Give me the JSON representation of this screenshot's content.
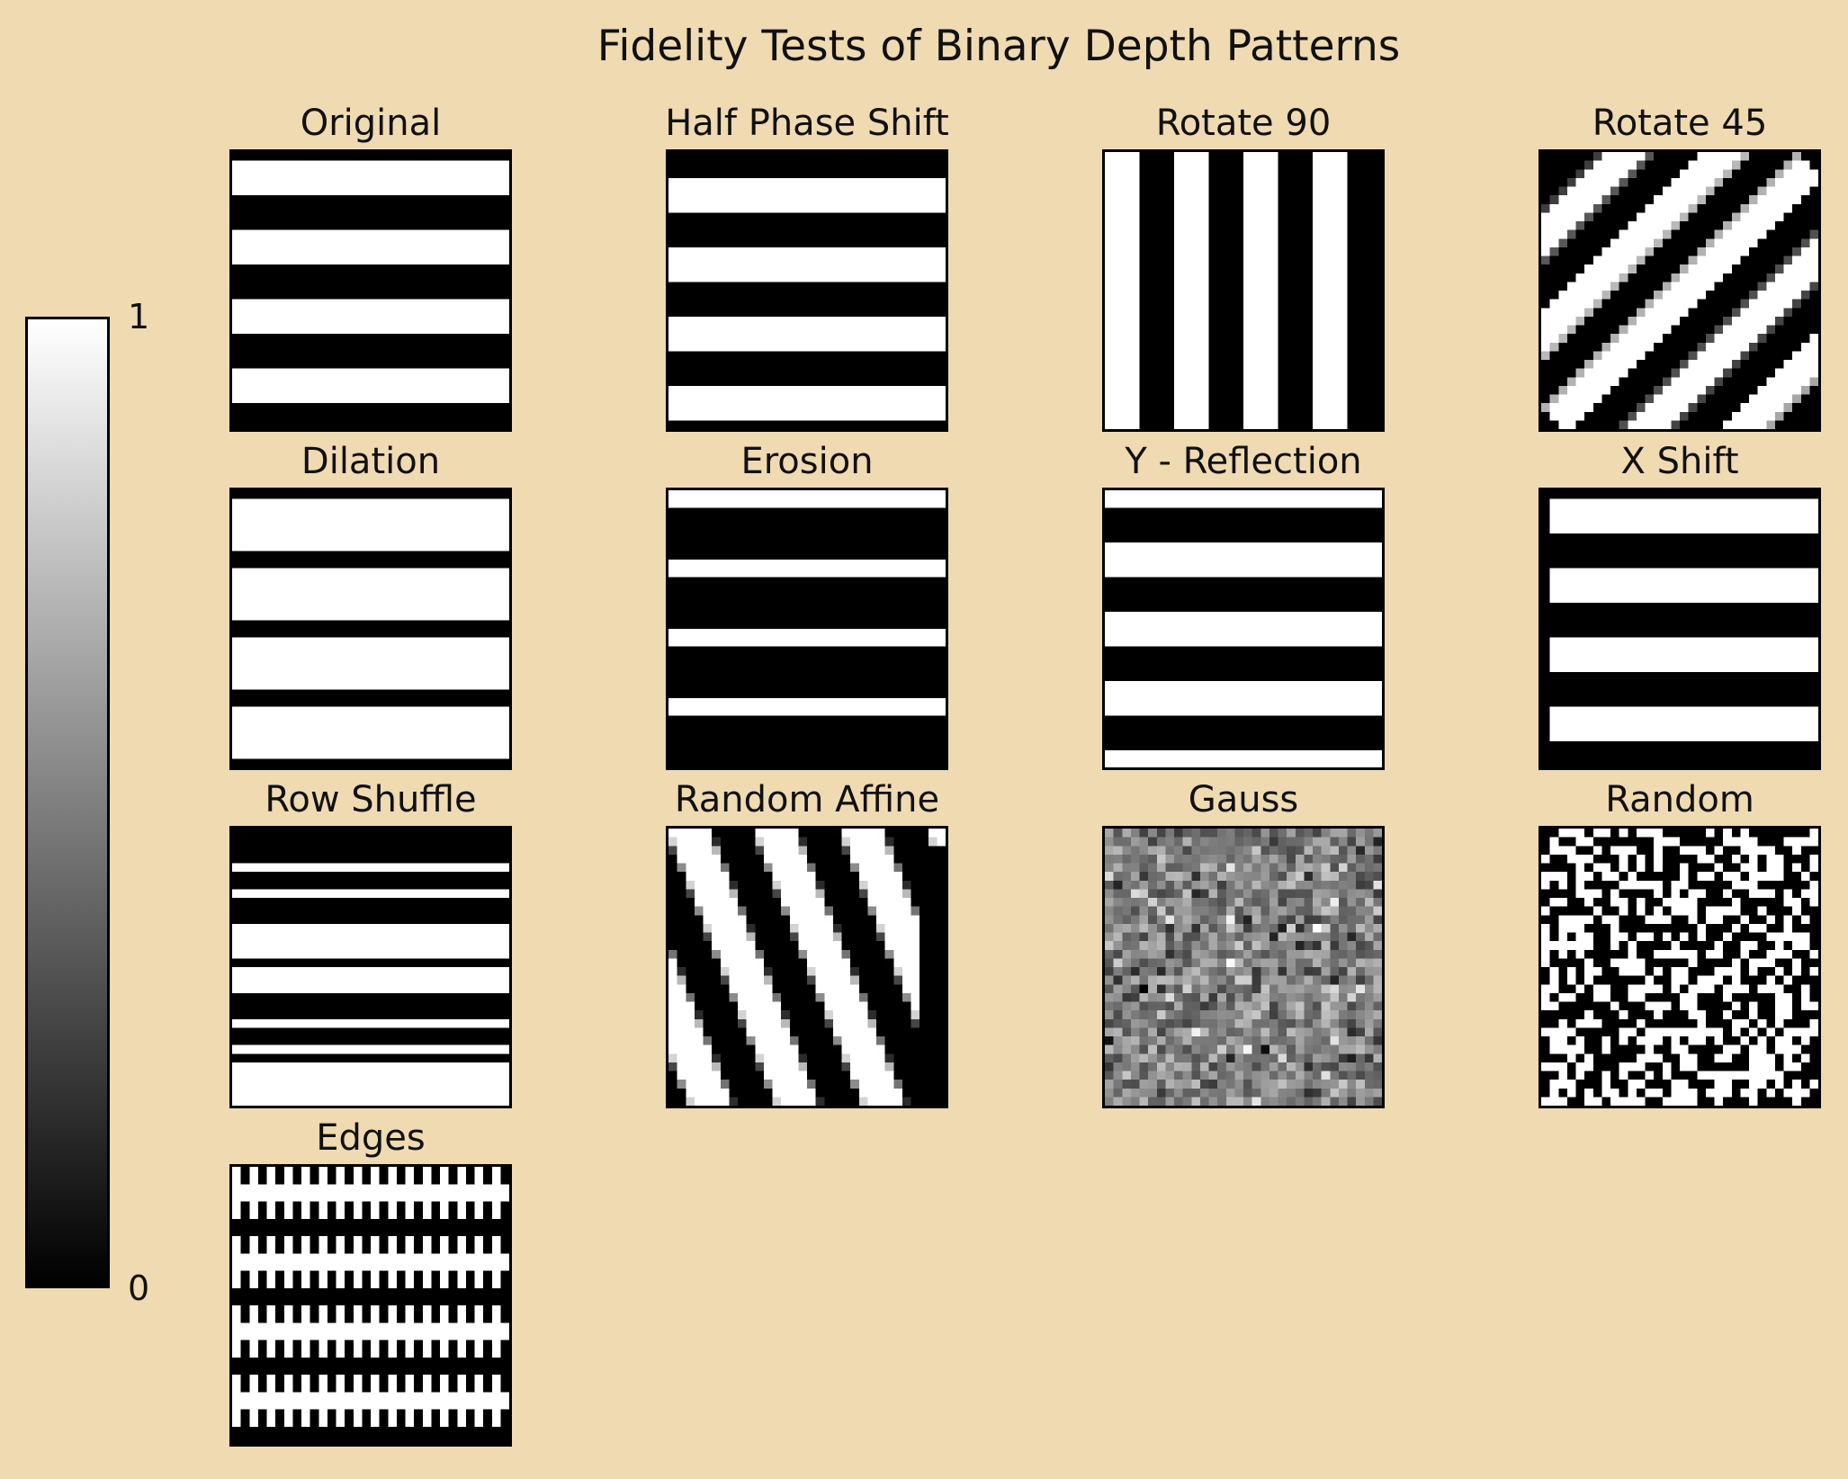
{
  "figure": {
    "title": "Fidelity Tests of Binary Depth Patterns",
    "background_color": "#efdab2",
    "colormap": "gray"
  },
  "chart_data": {
    "type": "heatmap",
    "title": "Fidelity Tests of Binary Depth Patterns",
    "pattern_resolution": 32,
    "value_range": [
      0,
      1
    ],
    "colorbar": {
      "ticks": [
        "1",
        "0"
      ],
      "min": 0,
      "max": 1,
      "orientation": "vertical",
      "placement": "left"
    },
    "panels": [
      {
        "title": "Original",
        "pattern": "horizontal-stripes",
        "period_rows": 8,
        "duty": 0.5,
        "phase": 1
      },
      {
        "title": "Half Phase Shift",
        "pattern": "horizontal-stripes",
        "period_rows": 8,
        "duty": 0.5,
        "phase": 3
      },
      {
        "title": "Rotate 90",
        "pattern": "vertical-stripes",
        "period_cols": 8,
        "duty": 0.5,
        "phase": 4
      },
      {
        "title": "Rotate 45",
        "pattern": "diagonal-stripes",
        "angle_deg": 45
      },
      {
        "title": "Dilation",
        "pattern": "horizontal-stripes",
        "period_rows": 8,
        "duty": 0.75,
        "phase": 1
      },
      {
        "title": "Erosion",
        "pattern": "horizontal-stripes",
        "period_rows": 8,
        "duty": 0.25,
        "phase": 0
      },
      {
        "title": "Y - Reflection",
        "pattern": "horizontal-stripes",
        "period_rows": 8,
        "duty": 0.5,
        "phase": 6
      },
      {
        "title": "X Shift",
        "pattern": "horizontal-stripes",
        "period_rows": 8,
        "duty": 0.5,
        "phase": 1,
        "shift_cols": 1
      },
      {
        "title": "Row Shuffle",
        "pattern": "row-shuffle"
      },
      {
        "title": "Random Affine",
        "pattern": "affine-stripes"
      },
      {
        "title": "Gauss",
        "pattern": "gaussian-noise",
        "mean": 0.5,
        "std": 0.15
      },
      {
        "title": "Random",
        "pattern": "binary-random",
        "p": 0.5
      },
      {
        "title": "Edges",
        "pattern": "edges",
        "period_rows": 8
      }
    ]
  }
}
